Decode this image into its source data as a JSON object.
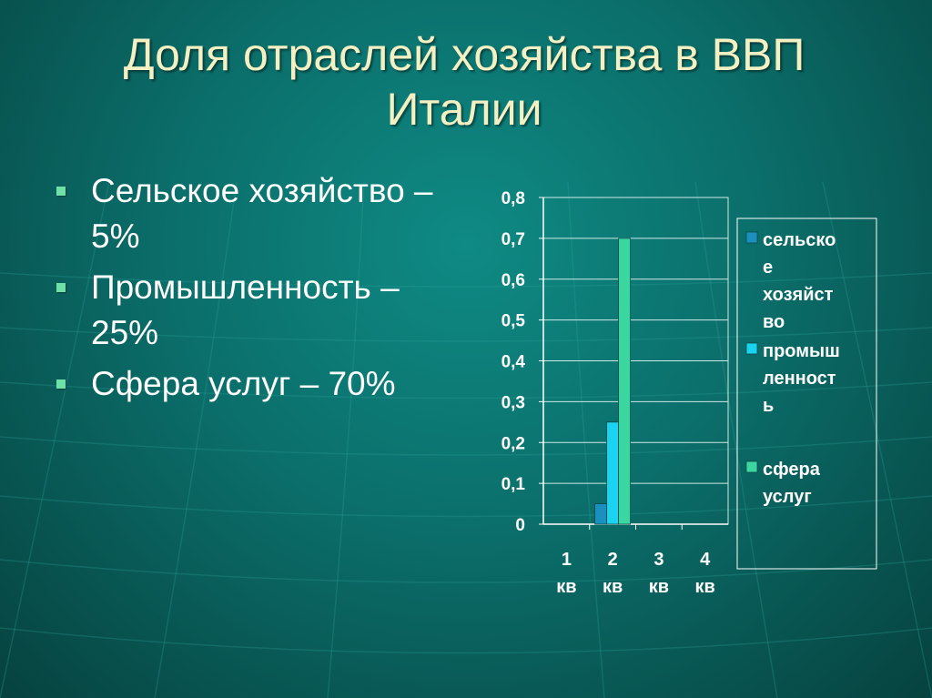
{
  "slide": {
    "title": "Доля отраслей хозяйства в ВВП Италии",
    "bullets": [
      "Сельское хозяйство – 5%",
      "Промышленность – 25%",
      "Сфера услуг – 70%"
    ]
  },
  "colors": {
    "title": "#f3f0c4",
    "text": "#ffffff",
    "bullet_marker": "#6fe0a8",
    "series": [
      "#1b8fbd",
      "#19d3f0",
      "#3cd6a0"
    ]
  },
  "chart_data": {
    "type": "bar",
    "categories": [
      "1 кв",
      "2 кв",
      "3 кв",
      "4 кв"
    ],
    "series": [
      {
        "name": "сельское хозяйство",
        "legend_lines": [
          "сельско",
          "е",
          "хозяйст",
          "во"
        ],
        "values": [
          0,
          0.05,
          0,
          0
        ]
      },
      {
        "name": "промышленность",
        "legend_lines": [
          "промыш",
          "ленност",
          "ь"
        ],
        "values": [
          0,
          0.25,
          0,
          0
        ]
      },
      {
        "name": "сфера услуг",
        "legend_lines": [
          "сфера",
          "услуг"
        ],
        "values": [
          0,
          0.7,
          0,
          0
        ]
      }
    ],
    "yticks": [
      "0",
      "0,1",
      "0,2",
      "0,3",
      "0,4",
      "0,5",
      "0,6",
      "0,7",
      "0,8"
    ],
    "ylim": [
      0,
      0.8
    ],
    "grid": true,
    "legend": "right"
  }
}
